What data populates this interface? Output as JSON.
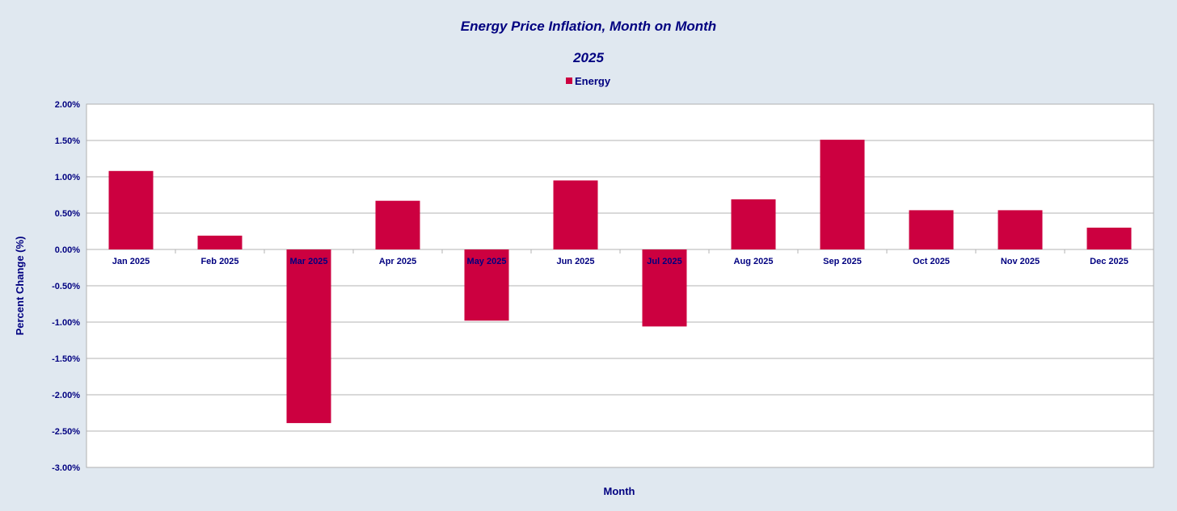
{
  "chart_data": {
    "type": "bar",
    "title": "Energy Price Inflation, Month on Month",
    "subtitle": "2025",
    "xlabel": "Month",
    "ylabel": "Percent Change (%)",
    "ylim": [
      -3.0,
      2.0
    ],
    "ytick_step": 0.5,
    "ytick_labels": [
      "2.00%",
      "1.50%",
      "1.00%",
      "0.50%",
      "0.00%",
      "-0.50%",
      "-1.00%",
      "-1.50%",
      "-2.00%",
      "-2.50%",
      "-3.00%"
    ],
    "categories": [
      "Jan 2025",
      "Feb 2025",
      "Mar 2025",
      "Apr 2025",
      "May 2025",
      "Jun 2025",
      "Jul 2025",
      "Aug 2025",
      "Sep 2025",
      "Oct 2025",
      "Nov 2025",
      "Dec 2025"
    ],
    "series": [
      {
        "name": "Energy",
        "color": "#cc0040",
        "values": [
          1.08,
          0.19,
          -2.39,
          0.67,
          -0.98,
          0.95,
          -1.06,
          0.69,
          1.51,
          0.54,
          0.54,
          0.3
        ]
      }
    ],
    "legend_position": "top-center",
    "grid": true
  }
}
